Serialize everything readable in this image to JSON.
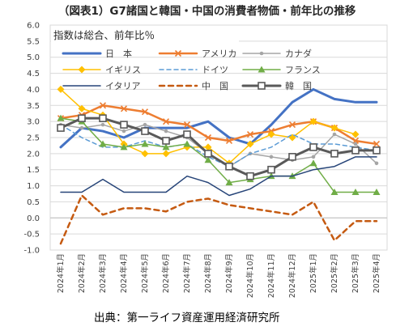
{
  "chart_data": {
    "type": "line",
    "title": "（図表1）G7諸国と韓国・中国の消費者物価・前年比の推移",
    "note": "指数は総合、前年比％",
    "source": "出典：第一ライフ資産運用経済研究所",
    "ylim": [
      -1.0,
      6.0
    ],
    "yticks": [
      "6.0",
      "5.5",
      "5.0",
      "4.5",
      "4.0",
      "3.5",
      "3.0",
      "2.5",
      "2.0",
      "1.5",
      "1.0",
      "0.5",
      "0.0",
      "-0.5",
      "-1.0"
    ],
    "categories": [
      "2024年1月",
      "2024年2月",
      "2024年3月",
      "2024年4月",
      "2024年5月",
      "2024年6月",
      "2024年7月",
      "2024年8月",
      "2024年9月",
      "2024年10月",
      "2024年11月",
      "2024年12月",
      "2025年1月",
      "2025年2月",
      "2025年3月",
      "2025年4月"
    ],
    "grid": true,
    "series": [
      {
        "name": "日　本",
        "color": "#4472C4",
        "dash": "",
        "width": 3,
        "marker": "none",
        "values": [
          2.2,
          2.8,
          2.7,
          2.5,
          2.8,
          2.8,
          2.8,
          3.0,
          2.5,
          2.3,
          2.9,
          3.6,
          4.0,
          3.7,
          3.6,
          3.6
        ]
      },
      {
        "name": "アメリカ",
        "color": "#ED7D31",
        "dash": "",
        "width": 2.5,
        "marker": "x",
        "values": [
          3.1,
          3.2,
          3.5,
          3.4,
          3.3,
          3.0,
          2.9,
          2.5,
          2.4,
          2.6,
          2.7,
          2.9,
          3.0,
          2.8,
          2.4,
          2.3
        ]
      },
      {
        "name": "カナダ",
        "color": "#A5A5A5",
        "dash": "",
        "width": 1.5,
        "marker": "dot",
        "values": [
          2.9,
          2.8,
          2.9,
          2.7,
          2.9,
          2.7,
          2.5,
          2.0,
          1.6,
          2.0,
          1.9,
          1.8,
          1.9,
          2.6,
          2.3,
          1.7
        ]
      },
      {
        "name": "イギリス",
        "color": "#FFC000",
        "dash": "",
        "width": 1.5,
        "marker": "diamond",
        "values": [
          4.0,
          3.4,
          3.2,
          2.3,
          2.0,
          2.0,
          2.2,
          2.2,
          1.7,
          2.3,
          2.6,
          2.5,
          3.0,
          2.8,
          2.6,
          null
        ]
      },
      {
        "name": "ドイツ",
        "color": "#5B9BD5",
        "dash": "5,4",
        "width": 1.5,
        "marker": "none",
        "values": [
          2.9,
          2.5,
          2.2,
          2.2,
          2.4,
          2.2,
          2.3,
          1.9,
          1.6,
          2.0,
          2.2,
          2.6,
          2.3,
          2.3,
          2.2,
          2.1
        ]
      },
      {
        "name": "フランス",
        "color": "#70AD47",
        "dash": "",
        "width": 1.5,
        "marker": "triangle",
        "values": [
          3.1,
          3.0,
          2.3,
          2.2,
          2.3,
          2.2,
          2.3,
          1.8,
          1.1,
          1.2,
          1.3,
          1.3,
          1.7,
          0.8,
          0.8,
          0.8
        ]
      },
      {
        "name": "イタリア",
        "color": "#264478",
        "dash": "",
        "width": 1.5,
        "marker": "none",
        "values": [
          0.8,
          0.8,
          1.2,
          0.8,
          0.8,
          0.8,
          1.3,
          1.1,
          0.7,
          0.9,
          1.3,
          1.3,
          1.5,
          1.6,
          1.9,
          1.9
        ]
      },
      {
        "name": "中　国",
        "color": "#C55A11",
        "dash": "6,5",
        "width": 2.5,
        "marker": "none",
        "values": [
          -0.8,
          0.7,
          0.1,
          0.3,
          0.3,
          0.2,
          0.5,
          0.6,
          0.4,
          0.3,
          0.2,
          0.1,
          0.5,
          -0.7,
          -0.1,
          -0.1
        ]
      },
      {
        "name": "韓　国",
        "color": "#595959",
        "dash": "",
        "width": 3,
        "marker": "square",
        "values": [
          2.8,
          3.1,
          3.1,
          2.9,
          2.7,
          2.4,
          2.6,
          2.0,
          1.6,
          1.3,
          1.5,
          1.9,
          2.2,
          2.0,
          2.1,
          2.1
        ]
      }
    ]
  }
}
